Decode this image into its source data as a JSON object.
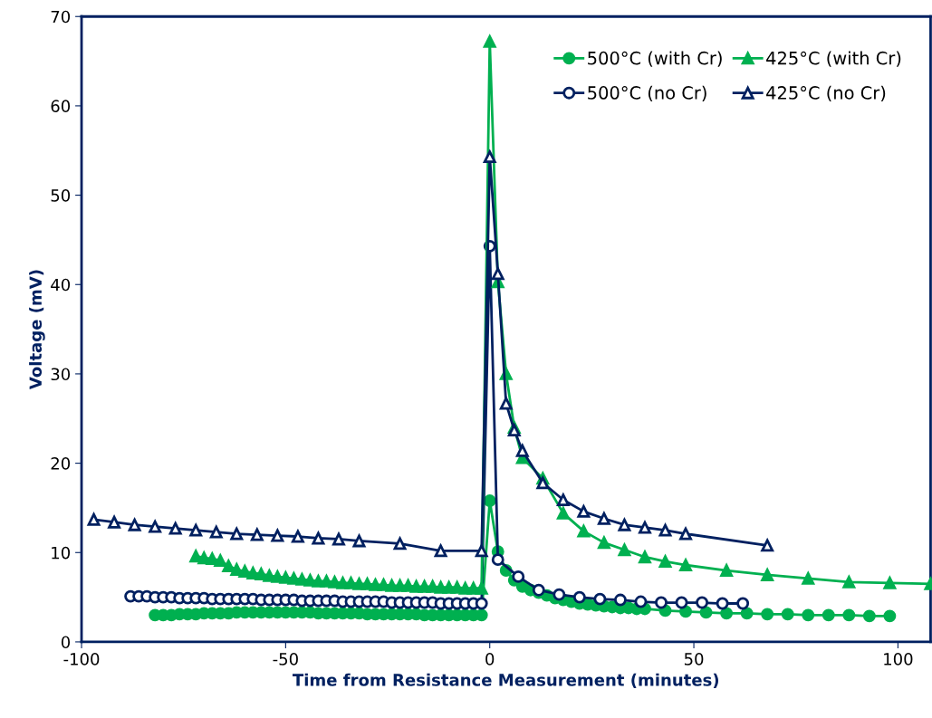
{
  "chart_data": {
    "type": "line",
    "xlabel": "Time from Resistance Measurement (minutes)",
    "ylabel": "Voltage (mV)",
    "xlim": [
      -100,
      108
    ],
    "xticks": [
      -100,
      -50,
      0,
      50,
      100
    ],
    "ylim": [
      0,
      70
    ],
    "yticks": [
      0,
      10,
      20,
      30,
      40,
      50,
      60,
      70
    ],
    "grid": false,
    "legend": "top right",
    "series": [
      {
        "name": "500°C (with Cr)",
        "color": "#00b050",
        "marker": "circle",
        "x": [
          -82,
          -80,
          -78,
          -76,
          -74,
          -72,
          -70,
          -68,
          -66,
          -64,
          -62,
          -60,
          -58,
          -56,
          -54,
          -52,
          -50,
          -48,
          -46,
          -44,
          -42,
          -40,
          -38,
          -36,
          -34,
          -32,
          -30,
          -28,
          -26,
          -24,
          -22,
          -20,
          -18,
          -16,
          -14,
          -12,
          -10,
          -8,
          -6,
          -4,
          -2,
          0,
          2,
          4,
          6,
          8,
          10,
          12,
          14,
          16,
          18,
          20,
          22,
          24,
          26,
          28,
          30,
          32,
          34,
          36,
          38,
          43,
          48,
          53,
          58,
          63,
          68,
          73,
          78,
          83,
          88,
          93,
          98
        ],
        "values": [
          3.0,
          3.0,
          3.0,
          3.1,
          3.1,
          3.1,
          3.2,
          3.2,
          3.2,
          3.2,
          3.3,
          3.3,
          3.3,
          3.3,
          3.3,
          3.3,
          3.3,
          3.3,
          3.3,
          3.3,
          3.2,
          3.2,
          3.2,
          3.2,
          3.2,
          3.2,
          3.1,
          3.1,
          3.1,
          3.1,
          3.1,
          3.1,
          3.1,
          3.0,
          3.0,
          3.0,
          3.0,
          3.0,
          3.0,
          3.0,
          3.0,
          15.8,
          10.1,
          8.0,
          6.9,
          6.2,
          5.8,
          5.5,
          5.2,
          4.9,
          4.7,
          4.5,
          4.3,
          4.2,
          4.1,
          4.0,
          3.9,
          3.8,
          3.8,
          3.7,
          3.7,
          3.5,
          3.4,
          3.3,
          3.2,
          3.2,
          3.1,
          3.1,
          3.0,
          3.0,
          3.0,
          2.9,
          2.9
        ]
      },
      {
        "name": "500°C (no Cr)",
        "color": "#002060",
        "marker": "circle",
        "x": [
          -88,
          -86,
          -84,
          -82,
          -80,
          -78,
          -76,
          -74,
          -72,
          -70,
          -68,
          -66,
          -64,
          -62,
          -60,
          -58,
          -56,
          -54,
          -52,
          -50,
          -48,
          -46,
          -44,
          -42,
          -40,
          -38,
          -36,
          -34,
          -32,
          -30,
          -28,
          -26,
          -24,
          -22,
          -20,
          -18,
          -16,
          -14,
          -12,
          -10,
          -8,
          -6,
          -4,
          -2,
          0,
          2,
          7,
          12,
          17,
          22,
          27,
          32,
          37,
          42,
          47,
          52,
          57,
          62
        ],
        "values": [
          5.1,
          5.1,
          5.1,
          5.0,
          5.0,
          5.0,
          4.9,
          4.9,
          4.9,
          4.9,
          4.8,
          4.8,
          4.8,
          4.8,
          4.8,
          4.8,
          4.7,
          4.7,
          4.7,
          4.7,
          4.7,
          4.6,
          4.6,
          4.6,
          4.6,
          4.6,
          4.5,
          4.5,
          4.5,
          4.5,
          4.5,
          4.5,
          4.4,
          4.4,
          4.4,
          4.4,
          4.4,
          4.4,
          4.3,
          4.3,
          4.3,
          4.3,
          4.3,
          4.3,
          44.3,
          9.2,
          7.3,
          5.8,
          5.3,
          5.0,
          4.8,
          4.7,
          4.5,
          4.4,
          4.4,
          4.4,
          4.3,
          4.3
        ]
      },
      {
        "name": "425°C (with Cr)",
        "color": "#00b050",
        "marker": "triangle",
        "x": [
          -72,
          -70,
          -68,
          -66,
          -64,
          -62,
          -60,
          -58,
          -56,
          -54,
          -52,
          -50,
          -48,
          -46,
          -44,
          -42,
          -40,
          -38,
          -36,
          -34,
          -32,
          -30,
          -28,
          -26,
          -24,
          -22,
          -20,
          -18,
          -16,
          -14,
          -12,
          -10,
          -8,
          -6,
          -4,
          -2,
          0,
          2,
          4,
          6,
          8,
          13,
          18,
          23,
          28,
          33,
          38,
          43,
          48,
          58,
          68,
          78,
          88,
          98,
          108
        ],
        "values": [
          9.6,
          9.4,
          9.3,
          9.1,
          8.5,
          8.1,
          7.9,
          7.7,
          7.6,
          7.4,
          7.3,
          7.2,
          7.1,
          7.0,
          6.9,
          6.8,
          6.8,
          6.7,
          6.6,
          6.6,
          6.5,
          6.5,
          6.4,
          6.4,
          6.3,
          6.3,
          6.3,
          6.2,
          6.2,
          6.2,
          6.1,
          6.1,
          6.1,
          6.0,
          6.0,
          6.0,
          67.2,
          40.3,
          30.0,
          24.0,
          20.6,
          18.3,
          14.4,
          12.4,
          11.1,
          10.3,
          9.5,
          9.0,
          8.6,
          8.0,
          7.5,
          7.1,
          6.7,
          6.6,
          6.5
        ]
      },
      {
        "name": "425°C (no Cr)",
        "color": "#002060",
        "marker": "triangle",
        "x": [
          -97,
          -92,
          -87,
          -82,
          -77,
          -72,
          -67,
          -62,
          -57,
          -52,
          -47,
          -42,
          -37,
          -32,
          -22,
          -12,
          -2,
          0,
          2,
          4,
          6,
          8,
          13,
          18,
          23,
          28,
          33,
          38,
          43,
          48,
          68
        ],
        "values": [
          13.7,
          13.4,
          13.1,
          12.9,
          12.7,
          12.5,
          12.3,
          12.1,
          12.0,
          11.9,
          11.8,
          11.6,
          11.5,
          11.3,
          11.0,
          10.2,
          10.2,
          54.3,
          41.2,
          26.7,
          23.7,
          21.4,
          17.8,
          15.9,
          14.6,
          13.8,
          13.1,
          12.8,
          12.5,
          12.1,
          10.8
        ]
      }
    ]
  }
}
